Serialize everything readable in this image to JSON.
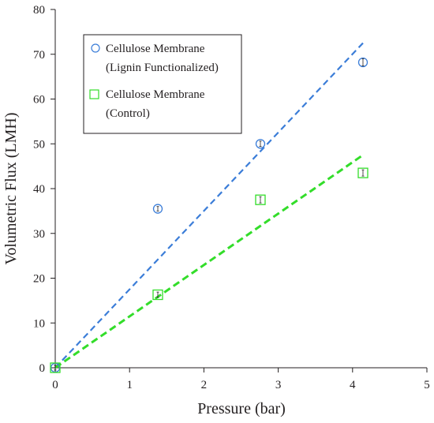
{
  "chart_data": {
    "type": "scatter",
    "xlabel": "Pressure (bar)",
    "ylabel": "Volumetric Flux (LMH)",
    "xlim": [
      0,
      5
    ],
    "ylim": [
      0,
      80
    ],
    "xticks": [
      0,
      1,
      2,
      3,
      4,
      5
    ],
    "yticks": [
      0,
      10,
      20,
      30,
      40,
      50,
      60,
      70,
      80
    ],
    "grid": false,
    "legend_position": "top-left",
    "series": [
      {
        "name_lines": [
          "Cellulose Membrane",
          "(Lignin Functionalized)"
        ],
        "marker": "circle",
        "color": "#3b7dd8",
        "points": [
          {
            "x": 0,
            "y": 0,
            "err": 0.5
          },
          {
            "x": 1.38,
            "y": 35.5,
            "err": 0.5
          },
          {
            "x": 2.76,
            "y": 50,
            "err": 0.6
          },
          {
            "x": 4.14,
            "y": 68.2,
            "err": 0.8
          }
        ],
        "fit": {
          "x": [
            0,
            4.14
          ],
          "y": [
            0,
            72.5
          ],
          "style": "dashed"
        }
      },
      {
        "name_lines": [
          "Cellulose Membrane",
          "(Control)"
        ],
        "marker": "square",
        "color": "#33dd2a",
        "points": [
          {
            "x": 0,
            "y": 0,
            "err": 0.5
          },
          {
            "x": 1.38,
            "y": 16.3,
            "err": 0.6
          },
          {
            "x": 2.76,
            "y": 37.5,
            "err": 0.7
          },
          {
            "x": 4.14,
            "y": 43.5,
            "err": 0.7
          }
        ],
        "fit": {
          "x": [
            0,
            4.14
          ],
          "y": [
            0,
            47.5
          ],
          "style": "dashed"
        }
      }
    ]
  }
}
